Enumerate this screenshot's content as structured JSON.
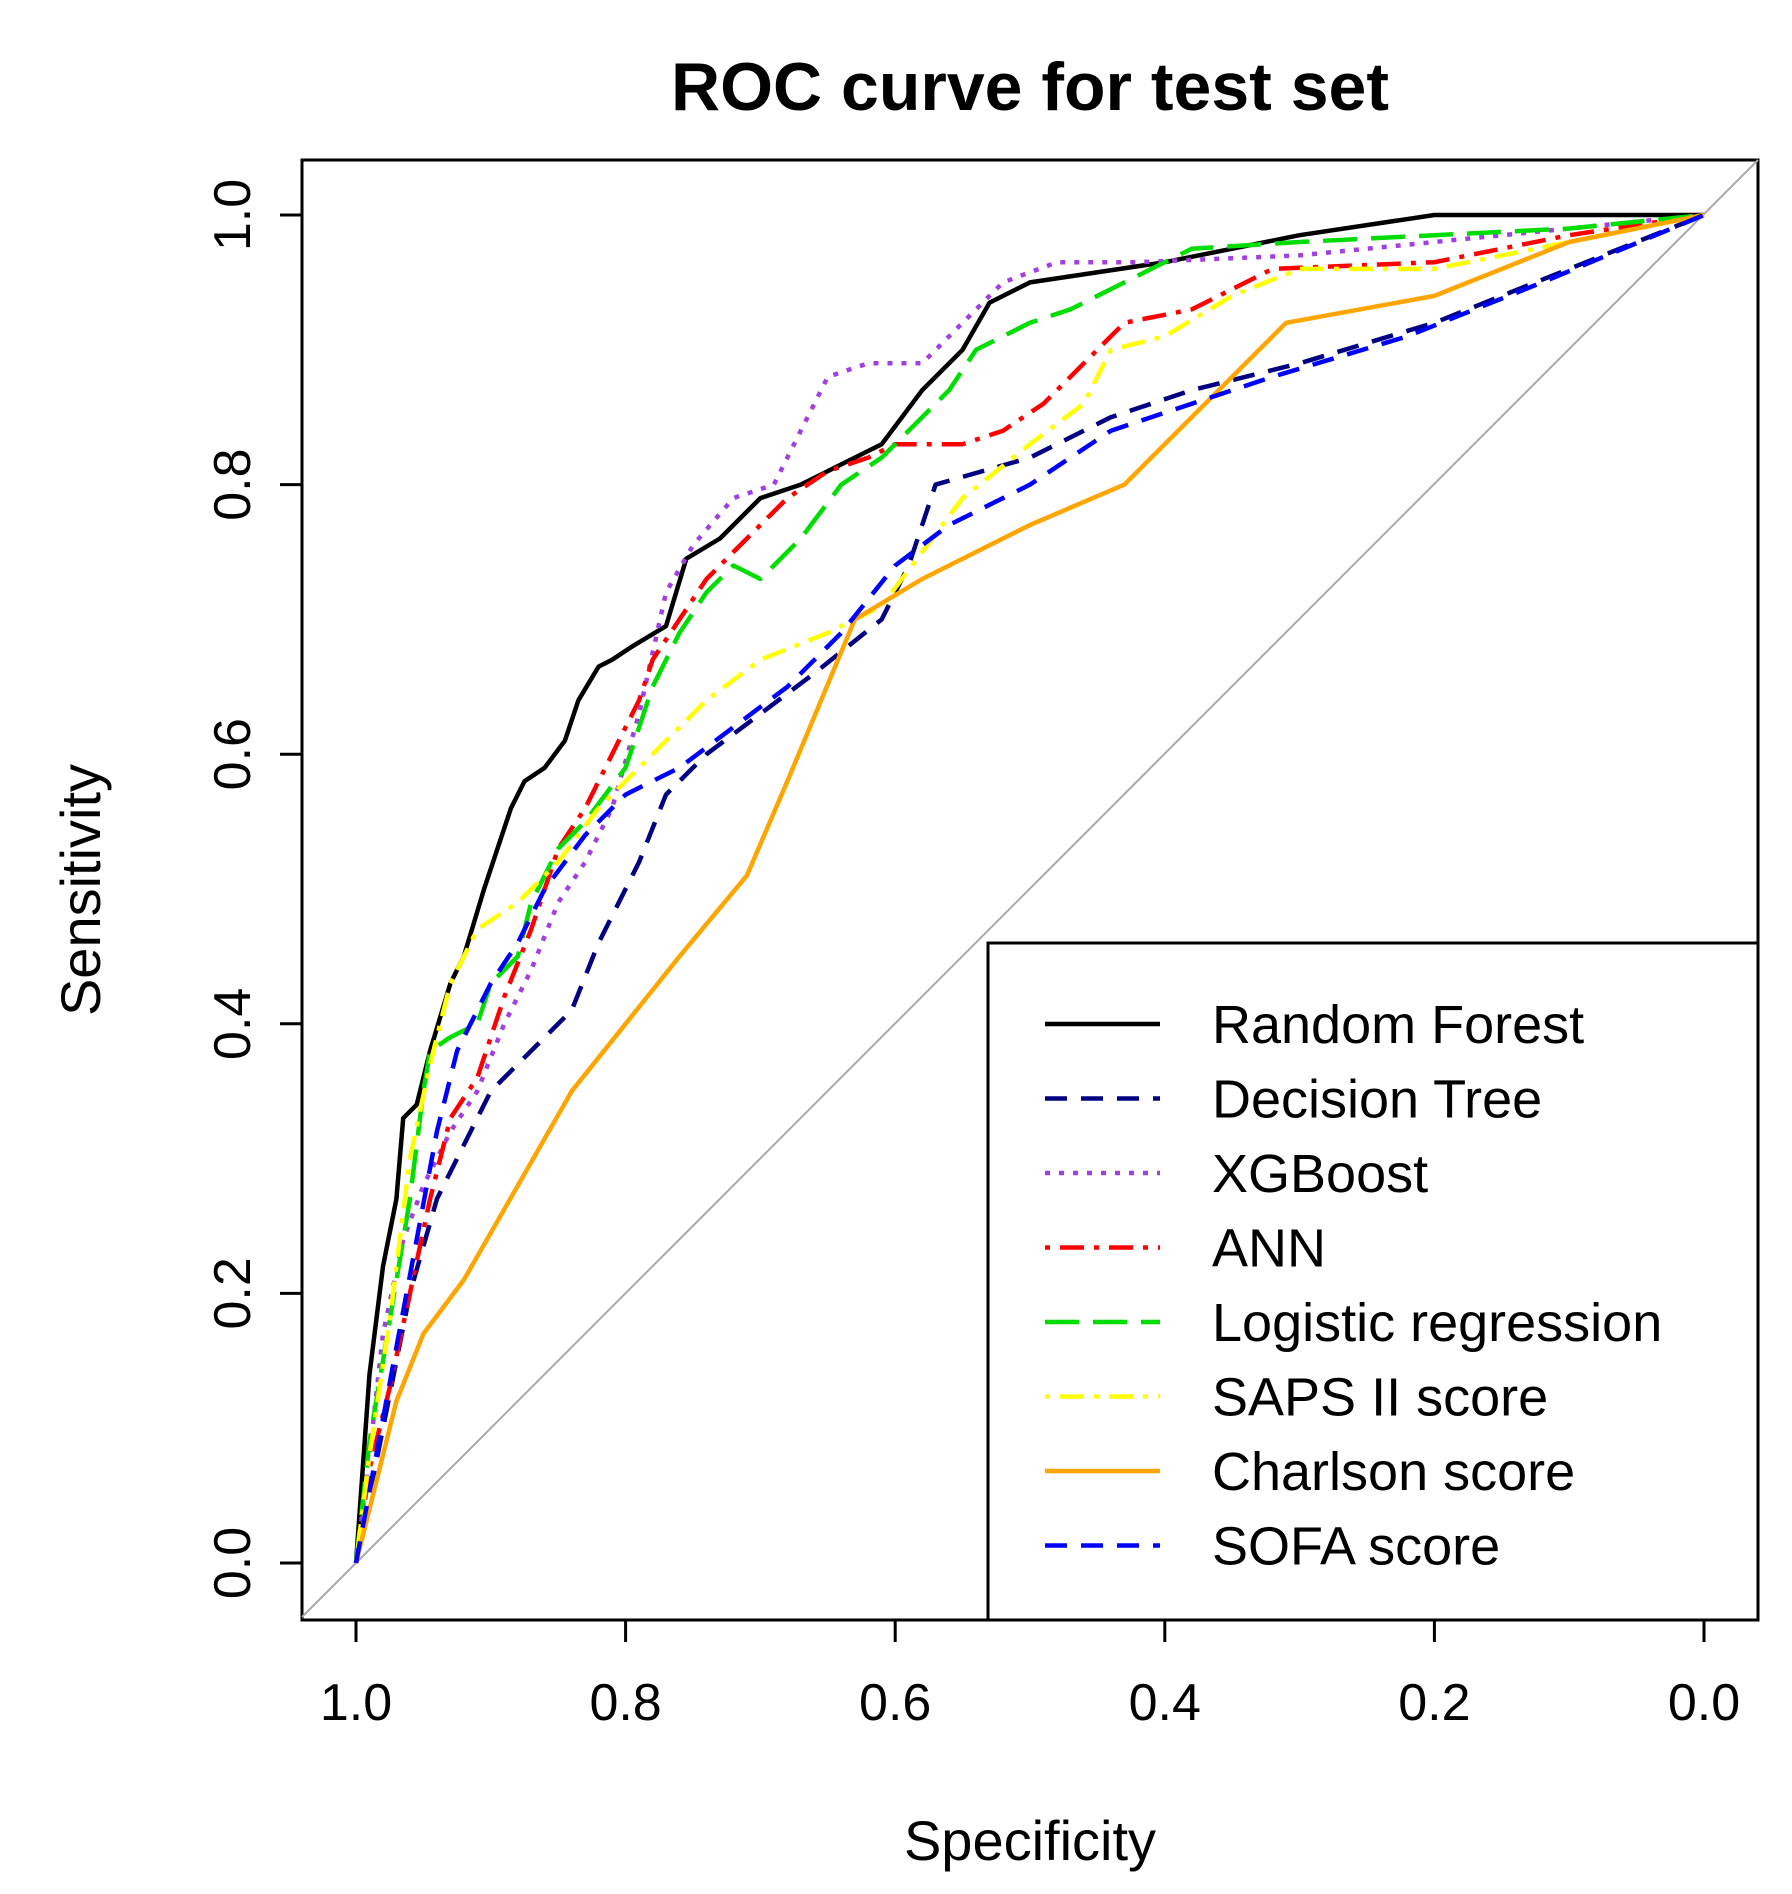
{
  "chart_data": {
    "type": "line",
    "title": "ROC curve for test set",
    "xlabel": "Specificity",
    "ylabel": "Sensitivity",
    "xlim": [
      1.0,
      0.0
    ],
    "ylim": [
      0.0,
      1.0
    ],
    "x_reversed": true,
    "grid": false,
    "legend_position": "bottom-right",
    "x_ticks": [
      1.0,
      0.8,
      0.6,
      0.4,
      0.2,
      0.0
    ],
    "y_ticks": [
      0.0,
      0.2,
      0.4,
      0.6,
      0.8,
      1.0
    ],
    "x_tick_labels": [
      "1.0",
      "0.8",
      "0.6",
      "0.4",
      "0.2",
      "0.0"
    ],
    "y_tick_labels": [
      "0.0",
      "0.2",
      "0.4",
      "0.6",
      "0.8",
      "1.0"
    ],
    "reference_line": {
      "from": [
        1.0,
        0.0
      ],
      "to": [
        0.0,
        1.0
      ],
      "color": "#aaaaaa"
    },
    "series": [
      {
        "name": "Random Forest",
        "color": "#000000",
        "dash": "solid",
        "points": [
          [
            1.0,
            0.0
          ],
          [
            0.99,
            0.14
          ],
          [
            0.98,
            0.22
          ],
          [
            0.97,
            0.27
          ],
          [
            0.965,
            0.33
          ],
          [
            0.955,
            0.34
          ],
          [
            0.945,
            0.38
          ],
          [
            0.93,
            0.43
          ],
          [
            0.92,
            0.45
          ],
          [
            0.905,
            0.5
          ],
          [
            0.895,
            0.53
          ],
          [
            0.885,
            0.56
          ],
          [
            0.875,
            0.58
          ],
          [
            0.86,
            0.59
          ],
          [
            0.845,
            0.61
          ],
          [
            0.835,
            0.64
          ],
          [
            0.82,
            0.665
          ],
          [
            0.81,
            0.67
          ],
          [
            0.795,
            0.68
          ],
          [
            0.77,
            0.695
          ],
          [
            0.755,
            0.745
          ],
          [
            0.73,
            0.76
          ],
          [
            0.7,
            0.79
          ],
          [
            0.67,
            0.8
          ],
          [
            0.64,
            0.815
          ],
          [
            0.61,
            0.83
          ],
          [
            0.58,
            0.87
          ],
          [
            0.55,
            0.9
          ],
          [
            0.53,
            0.935
          ],
          [
            0.5,
            0.95
          ],
          [
            0.4,
            0.965
          ],
          [
            0.3,
            0.985
          ],
          [
            0.2,
            1.0
          ],
          [
            0.0,
            1.0
          ]
        ]
      },
      {
        "name": "Decision Tree",
        "color": "#000080",
        "dash": "dashed",
        "points": [
          [
            1.0,
            0.0
          ],
          [
            0.98,
            0.1
          ],
          [
            0.96,
            0.2
          ],
          [
            0.94,
            0.27
          ],
          [
            0.92,
            0.31
          ],
          [
            0.9,
            0.35
          ],
          [
            0.87,
            0.38
          ],
          [
            0.84,
            0.41
          ],
          [
            0.82,
            0.46
          ],
          [
            0.79,
            0.52
          ],
          [
            0.77,
            0.57
          ],
          [
            0.74,
            0.6
          ],
          [
            0.7,
            0.63
          ],
          [
            0.66,
            0.66
          ],
          [
            0.61,
            0.7
          ],
          [
            0.59,
            0.74
          ],
          [
            0.57,
            0.8
          ],
          [
            0.5,
            0.82
          ],
          [
            0.44,
            0.85
          ],
          [
            0.38,
            0.87
          ],
          [
            0.3,
            0.89
          ],
          [
            0.2,
            0.92
          ],
          [
            0.1,
            0.96
          ],
          [
            0.0,
            1.0
          ]
        ]
      },
      {
        "name": "XGBoost",
        "color": "#a040e0",
        "dash": "dotted",
        "points": [
          [
            1.0,
            0.0
          ],
          [
            0.99,
            0.08
          ],
          [
            0.98,
            0.17
          ],
          [
            0.965,
            0.24
          ],
          [
            0.95,
            0.28
          ],
          [
            0.93,
            0.32
          ],
          [
            0.91,
            0.35
          ],
          [
            0.89,
            0.4
          ],
          [
            0.87,
            0.44
          ],
          [
            0.85,
            0.49
          ],
          [
            0.83,
            0.52
          ],
          [
            0.81,
            0.56
          ],
          [
            0.79,
            0.63
          ],
          [
            0.77,
            0.72
          ],
          [
            0.75,
            0.755
          ],
          [
            0.72,
            0.79
          ],
          [
            0.69,
            0.8
          ],
          [
            0.67,
            0.84
          ],
          [
            0.65,
            0.88
          ],
          [
            0.62,
            0.89
          ],
          [
            0.58,
            0.89
          ],
          [
            0.55,
            0.92
          ],
          [
            0.52,
            0.95
          ],
          [
            0.48,
            0.965
          ],
          [
            0.42,
            0.965
          ],
          [
            0.3,
            0.97
          ],
          [
            0.2,
            0.98
          ],
          [
            0.0,
            1.0
          ]
        ]
      },
      {
        "name": "ANN",
        "color": "#ff0000",
        "dash": "dashdot",
        "points": [
          [
            1.0,
            0.0
          ],
          [
            0.99,
            0.07
          ],
          [
            0.975,
            0.13
          ],
          [
            0.96,
            0.2
          ],
          [
            0.945,
            0.27
          ],
          [
            0.93,
            0.33
          ],
          [
            0.91,
            0.36
          ],
          [
            0.89,
            0.42
          ],
          [
            0.87,
            0.47
          ],
          [
            0.85,
            0.53
          ],
          [
            0.83,
            0.56
          ],
          [
            0.81,
            0.6
          ],
          [
            0.79,
            0.64
          ],
          [
            0.78,
            0.67
          ],
          [
            0.76,
            0.7
          ],
          [
            0.74,
            0.73
          ],
          [
            0.72,
            0.75
          ],
          [
            0.7,
            0.77
          ],
          [
            0.68,
            0.79
          ],
          [
            0.65,
            0.81
          ],
          [
            0.62,
            0.82
          ],
          [
            0.6,
            0.83
          ],
          [
            0.55,
            0.83
          ],
          [
            0.52,
            0.84
          ],
          [
            0.49,
            0.86
          ],
          [
            0.47,
            0.88
          ],
          [
            0.45,
            0.9
          ],
          [
            0.43,
            0.92
          ],
          [
            0.38,
            0.93
          ],
          [
            0.32,
            0.96
          ],
          [
            0.2,
            0.965
          ],
          [
            0.1,
            0.985
          ],
          [
            0.0,
            1.0
          ]
        ]
      },
      {
        "name": "Logistic regression",
        "color": "#00dd00",
        "dash": "longdash",
        "points": [
          [
            1.0,
            0.0
          ],
          [
            0.99,
            0.09
          ],
          [
            0.98,
            0.15
          ],
          [
            0.96,
            0.27
          ],
          [
            0.95,
            0.35
          ],
          [
            0.945,
            0.38
          ],
          [
            0.93,
            0.39
          ],
          [
            0.91,
            0.4
          ],
          [
            0.9,
            0.43
          ],
          [
            0.88,
            0.45
          ],
          [
            0.87,
            0.49
          ],
          [
            0.85,
            0.53
          ],
          [
            0.83,
            0.55
          ],
          [
            0.8,
            0.59
          ],
          [
            0.78,
            0.65
          ],
          [
            0.76,
            0.69
          ],
          [
            0.74,
            0.72
          ],
          [
            0.72,
            0.74
          ],
          [
            0.7,
            0.73
          ],
          [
            0.67,
            0.76
          ],
          [
            0.64,
            0.8
          ],
          [
            0.61,
            0.82
          ],
          [
            0.59,
            0.84
          ],
          [
            0.56,
            0.87
          ],
          [
            0.54,
            0.9
          ],
          [
            0.5,
            0.92
          ],
          [
            0.47,
            0.93
          ],
          [
            0.42,
            0.955
          ],
          [
            0.38,
            0.975
          ],
          [
            0.3,
            0.98
          ],
          [
            0.2,
            0.985
          ],
          [
            0.1,
            0.99
          ],
          [
            0.0,
            1.0
          ]
        ]
      },
      {
        "name": "SAPS II score",
        "color": "#ffff00",
        "dash": "dashdot",
        "points": [
          [
            1.0,
            0.0
          ],
          [
            0.99,
            0.08
          ],
          [
            0.975,
            0.18
          ],
          [
            0.96,
            0.3
          ],
          [
            0.945,
            0.37
          ],
          [
            0.93,
            0.43
          ],
          [
            0.91,
            0.47
          ],
          [
            0.88,
            0.49
          ],
          [
            0.85,
            0.52
          ],
          [
            0.82,
            0.56
          ],
          [
            0.78,
            0.6
          ],
          [
            0.74,
            0.64
          ],
          [
            0.7,
            0.67
          ],
          [
            0.65,
            0.69
          ],
          [
            0.61,
            0.71
          ],
          [
            0.58,
            0.75
          ],
          [
            0.55,
            0.79
          ],
          [
            0.5,
            0.83
          ],
          [
            0.46,
            0.86
          ],
          [
            0.44,
            0.9
          ],
          [
            0.4,
            0.91
          ],
          [
            0.35,
            0.94
          ],
          [
            0.3,
            0.96
          ],
          [
            0.2,
            0.96
          ],
          [
            0.1,
            0.98
          ],
          [
            0.0,
            1.0
          ]
        ]
      },
      {
        "name": "Charlson score",
        "color": "#ffa500",
        "dash": "solid",
        "points": [
          [
            1.0,
            0.0
          ],
          [
            0.97,
            0.12
          ],
          [
            0.95,
            0.17
          ],
          [
            0.92,
            0.21
          ],
          [
            0.88,
            0.28
          ],
          [
            0.84,
            0.35
          ],
          [
            0.8,
            0.4
          ],
          [
            0.76,
            0.45
          ],
          [
            0.71,
            0.51
          ],
          [
            0.68,
            0.58
          ],
          [
            0.63,
            0.7
          ],
          [
            0.58,
            0.73
          ],
          [
            0.5,
            0.77
          ],
          [
            0.43,
            0.8
          ],
          [
            0.31,
            0.92
          ],
          [
            0.2,
            0.94
          ],
          [
            0.1,
            0.98
          ],
          [
            0.0,
            1.0
          ]
        ]
      },
      {
        "name": "SOFA score",
        "color": "#0000ff",
        "dash": "dashed",
        "points": [
          [
            1.0,
            0.0
          ],
          [
            0.985,
            0.08
          ],
          [
            0.97,
            0.16
          ],
          [
            0.955,
            0.24
          ],
          [
            0.94,
            0.32
          ],
          [
            0.925,
            0.38
          ],
          [
            0.9,
            0.43
          ],
          [
            0.88,
            0.46
          ],
          [
            0.86,
            0.5
          ],
          [
            0.83,
            0.54
          ],
          [
            0.8,
            0.57
          ],
          [
            0.76,
            0.59
          ],
          [
            0.72,
            0.62
          ],
          [
            0.68,
            0.65
          ],
          [
            0.64,
            0.69
          ],
          [
            0.6,
            0.74
          ],
          [
            0.56,
            0.77
          ],
          [
            0.5,
            0.8
          ],
          [
            0.44,
            0.84
          ],
          [
            0.38,
            0.86
          ],
          [
            0.32,
            0.88
          ],
          [
            0.22,
            0.91
          ],
          [
            0.12,
            0.95
          ],
          [
            0.0,
            1.0
          ]
        ]
      }
    ]
  }
}
